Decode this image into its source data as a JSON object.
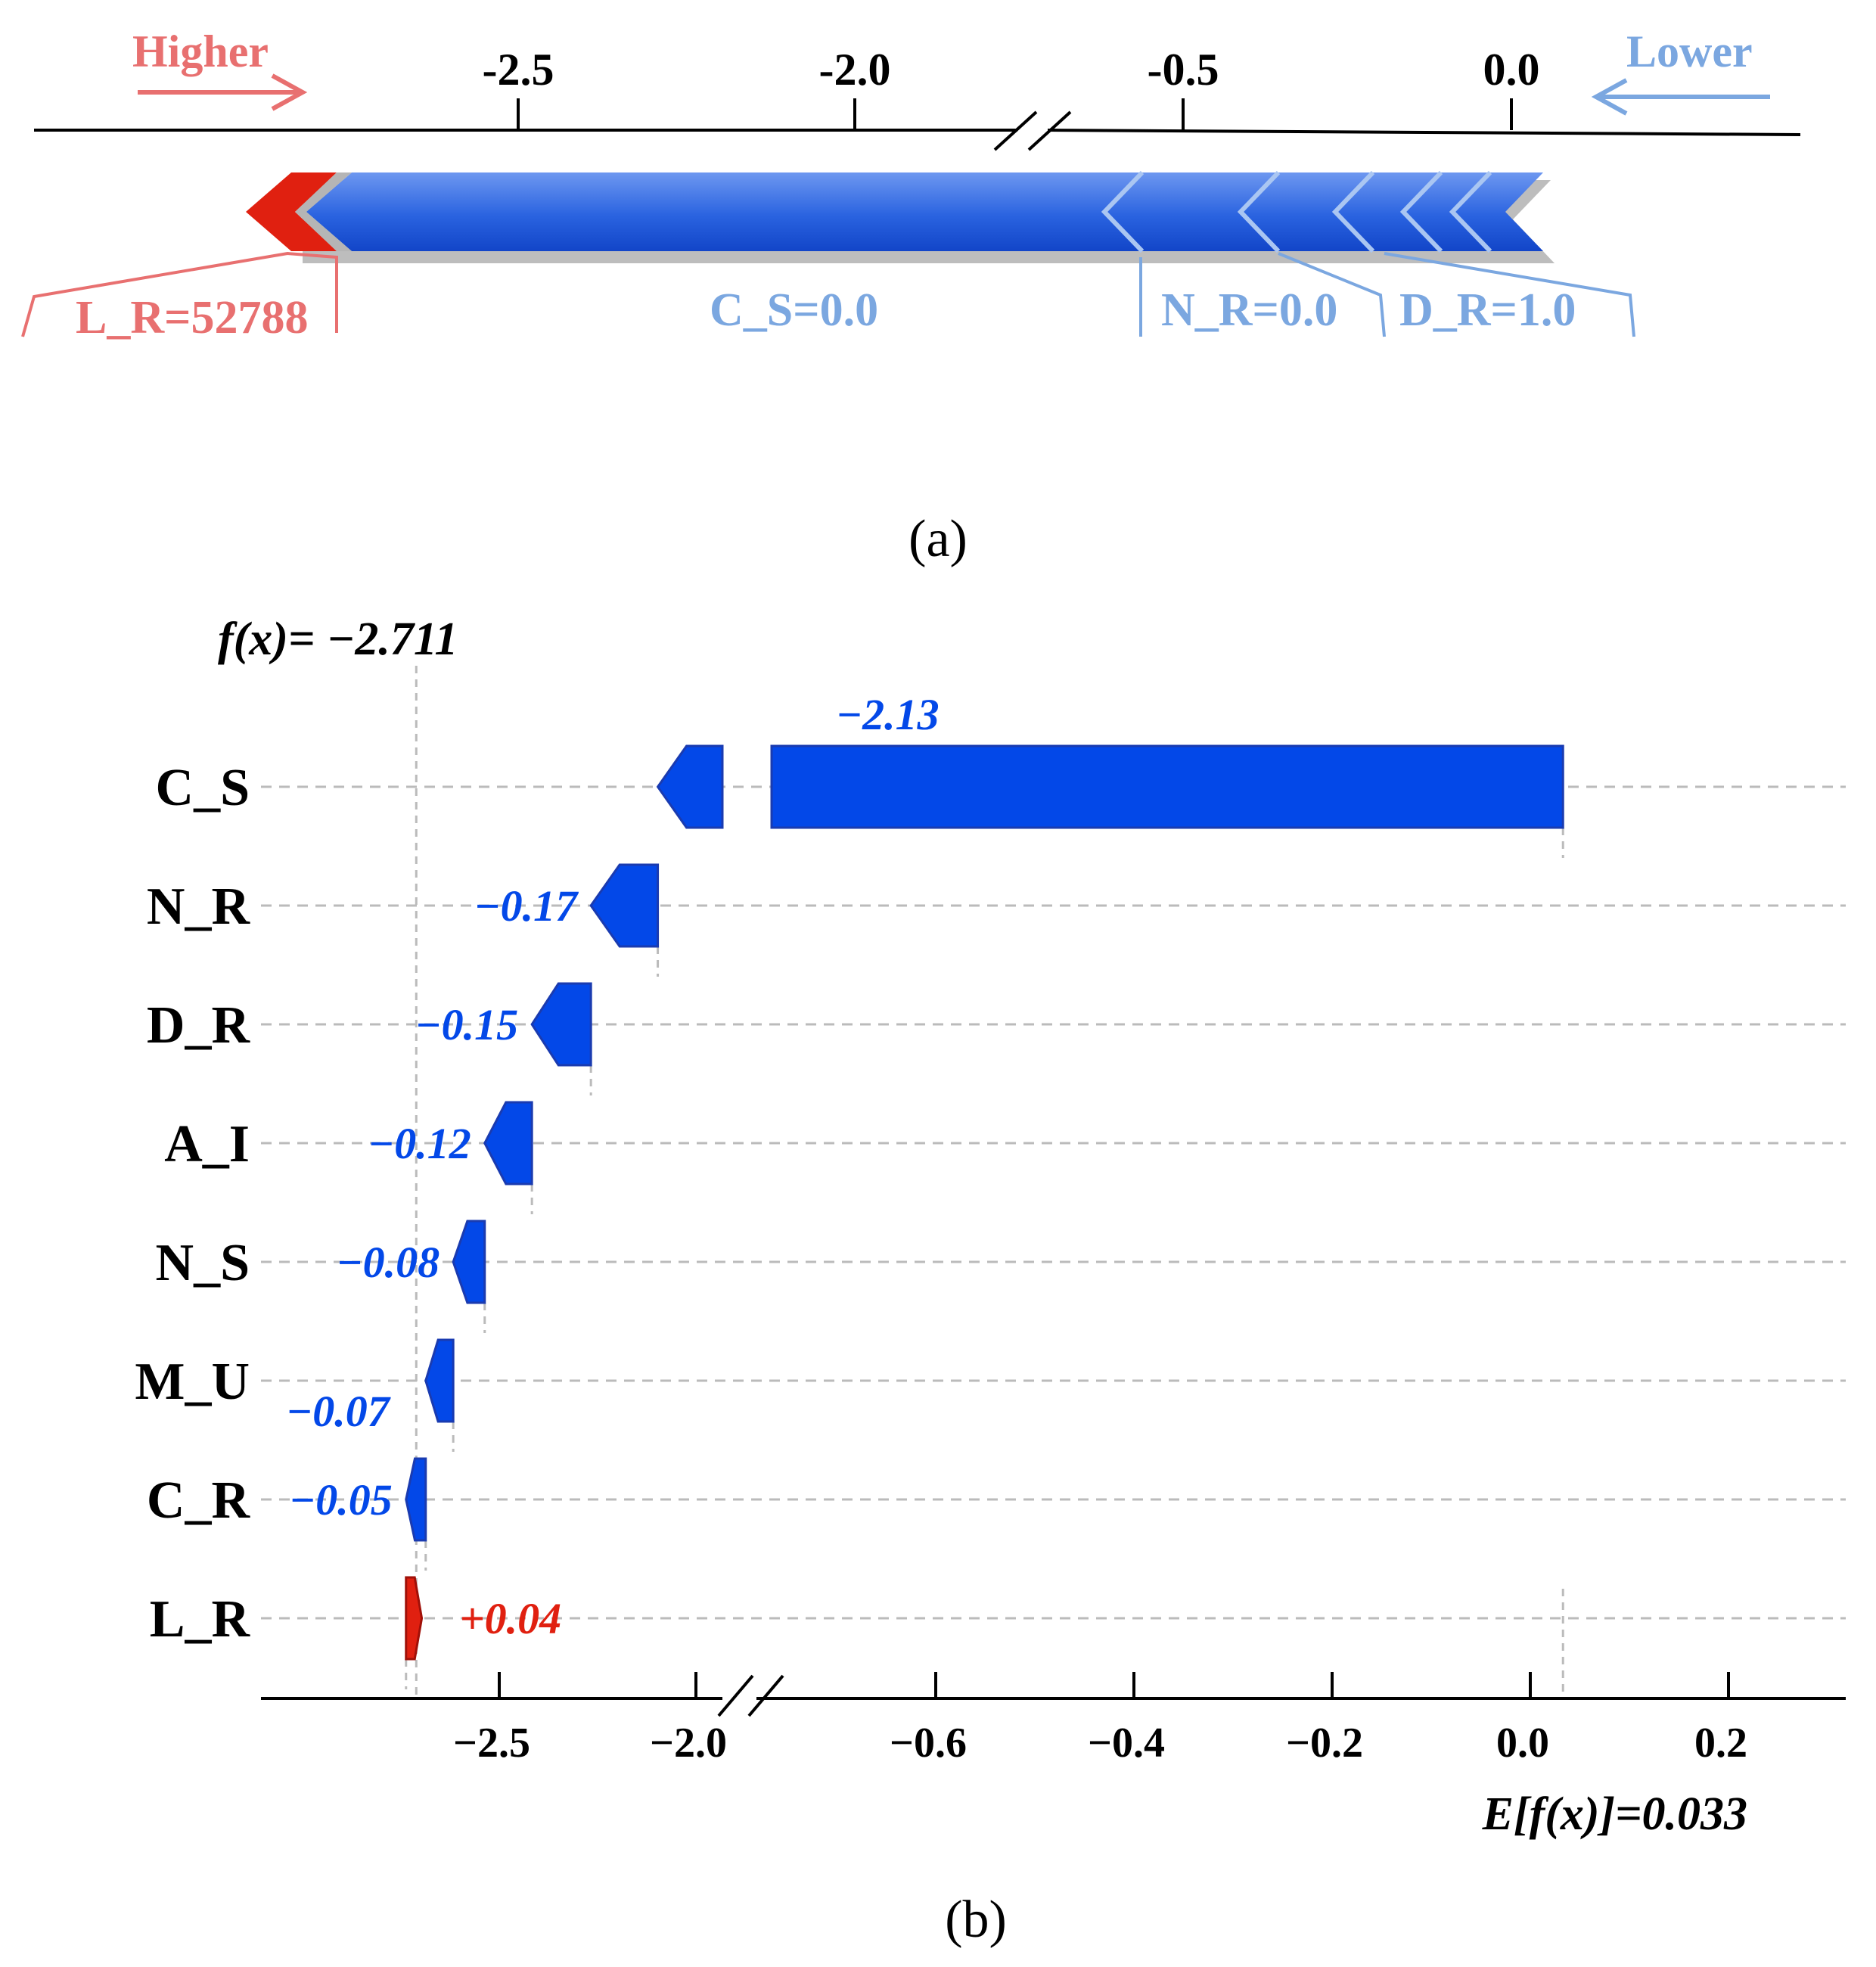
{
  "colors": {
    "positive": "#e02010",
    "negative": "#0348e8",
    "positive_light": "#e87070",
    "negative_light": "#7ba7e0",
    "bar_gradient_light": "#6d97f0",
    "bar_gradient_dark": "#1551d6",
    "grid": "#bbbbbb",
    "axis": "#000000"
  },
  "panel_a": {
    "label": "(a)",
    "higher_label": "Higher",
    "lower_label": "Lower",
    "axis_ticks": [
      {
        "value": -2.5,
        "label": "-2.5"
      },
      {
        "value": -2.0,
        "label": "-2.0"
      },
      {
        "value": -0.5,
        "label": "-0.5"
      },
      {
        "value": 0.0,
        "label": "0.0"
      }
    ],
    "feature_labels": [
      {
        "name": "L_R",
        "text": "L_R=52788",
        "effect": "positive"
      },
      {
        "name": "C_S",
        "text": "C_S=0.0",
        "effect": "negative"
      },
      {
        "name": "N_R",
        "text": "N_R=0.0",
        "effect": "negative"
      },
      {
        "name": "D_R",
        "text": "D_R=1.0",
        "effect": "negative"
      }
    ]
  },
  "panel_b": {
    "label": "(b)",
    "fx_label": "f(x)= −2.711",
    "expected_label": "E[f(x)]=0.033"
  },
  "chart_data": [
    {
      "type": "force",
      "title": "",
      "x_axis_break": true,
      "xticks": [
        "-2.5",
        "-2.0",
        "-0.5",
        "0.0"
      ],
      "left_annotation": "Higher",
      "right_annotation": "Lower",
      "features": [
        {
          "label": "L_R=52788",
          "effect": "positive"
        },
        {
          "label": "C_S=0.0",
          "effect": "negative"
        },
        {
          "label": "N_R=0.0",
          "effect": "negative"
        },
        {
          "label": "D_R=1.0",
          "effect": "negative"
        }
      ]
    },
    {
      "type": "bar",
      "orientation": "horizontal",
      "subtype": "waterfall",
      "categories": [
        "C_S",
        "N_R",
        "D_R",
        "A_I",
        "N_S",
        "M_U",
        "C_R",
        "L_R"
      ],
      "values": [
        -2.13,
        -0.17,
        -0.15,
        -0.12,
        -0.08,
        -0.07,
        -0.05,
        0.04
      ],
      "value_labels": [
        "−2.13",
        "−0.17",
        "−0.15",
        "−0.12",
        "−0.08",
        "−0.07",
        "−0.05",
        "+0.04"
      ],
      "base_value": 0.033,
      "final_value": -2.711,
      "xticks": [
        -2.5,
        -2.0,
        -0.6,
        -0.4,
        -0.2,
        0.0,
        0.2
      ],
      "xtick_labels": [
        "−2.5",
        "−2.0",
        "−0.6",
        "−0.4",
        "−0.2",
        "0.0",
        "0.2"
      ],
      "x_axis_break": [
        -2.0,
        -0.6
      ],
      "xlabel": "",
      "ylabel": "",
      "title": ""
    }
  ]
}
